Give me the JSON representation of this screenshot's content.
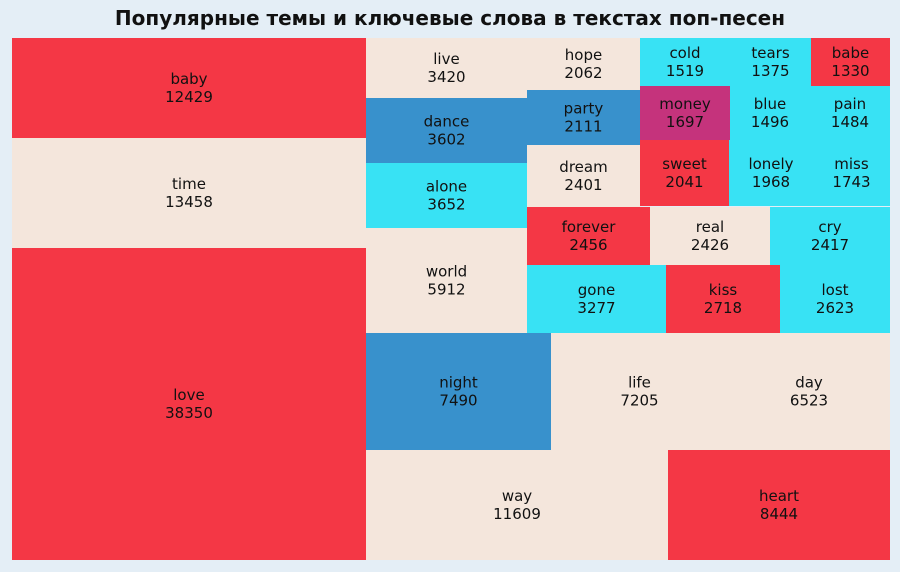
{
  "chart_data": {
    "type": "treemap",
    "title": "Популярные темы и ключевые слова в текстах поп-песен",
    "colors": {
      "red": "#f43745",
      "beige": "#f4e6dc",
      "blue": "#3891cc",
      "cyan": "#38e2f4",
      "magenta": "#c5337c"
    },
    "items": [
      {
        "label": "baby",
        "value": 12429,
        "color": "red"
      },
      {
        "label": "time",
        "value": 13458,
        "color": "beige"
      },
      {
        "label": "love",
        "value": 38350,
        "color": "red"
      },
      {
        "label": "live",
        "value": 3420,
        "color": "beige"
      },
      {
        "label": "dance",
        "value": 3602,
        "color": "blue"
      },
      {
        "label": "alone",
        "value": 3652,
        "color": "cyan"
      },
      {
        "label": "world",
        "value": 5912,
        "color": "beige"
      },
      {
        "label": "hope",
        "value": 2062,
        "color": "beige"
      },
      {
        "label": "party",
        "value": 2111,
        "color": "blue"
      },
      {
        "label": "dream",
        "value": 2401,
        "color": "beige"
      },
      {
        "label": "cold",
        "value": 1519,
        "color": "cyan"
      },
      {
        "label": "tears",
        "value": 1375,
        "color": "cyan"
      },
      {
        "label": "babe",
        "value": 1330,
        "color": "red"
      },
      {
        "label": "money",
        "value": 1697,
        "color": "magenta"
      },
      {
        "label": "blue",
        "value": 1496,
        "color": "cyan"
      },
      {
        "label": "pain",
        "value": 1484,
        "color": "cyan"
      },
      {
        "label": "sweet",
        "value": 2041,
        "color": "red"
      },
      {
        "label": "lonely",
        "value": 1968,
        "color": "cyan"
      },
      {
        "label": "miss",
        "value": 1743,
        "color": "cyan"
      },
      {
        "label": "forever",
        "value": 2456,
        "color": "red"
      },
      {
        "label": "real",
        "value": 2426,
        "color": "beige"
      },
      {
        "label": "cry",
        "value": 2417,
        "color": "cyan"
      },
      {
        "label": "gone",
        "value": 3277,
        "color": "cyan"
      },
      {
        "label": "kiss",
        "value": 2718,
        "color": "red"
      },
      {
        "label": "lost",
        "value": 2623,
        "color": "cyan"
      },
      {
        "label": "night",
        "value": 7490,
        "color": "blue"
      },
      {
        "label": "life",
        "value": 7205,
        "color": "beige"
      },
      {
        "label": "day",
        "value": 6523,
        "color": "beige"
      },
      {
        "label": "way",
        "value": 11609,
        "color": "beige"
      },
      {
        "label": "heart",
        "value": 8444,
        "color": "red"
      }
    ]
  }
}
